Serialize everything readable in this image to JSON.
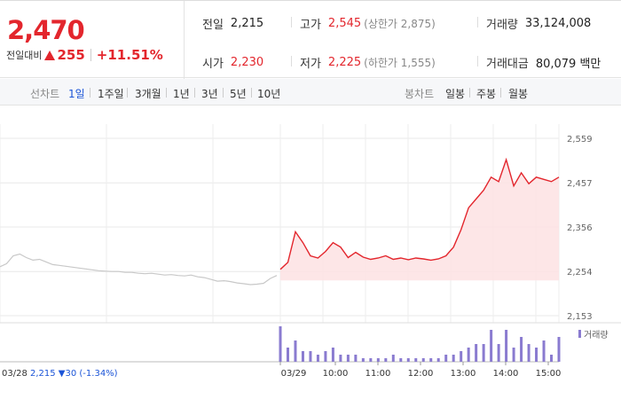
{
  "summary": {
    "price": "2,470",
    "change_label": "전일대비",
    "change_value": "255",
    "change_rate": "+11.51%"
  },
  "stats": {
    "prev_close": {
      "label": "전일",
      "value": "2,215"
    },
    "high": {
      "label": "고가",
      "value": "2,545",
      "sub": "(상한가 2,875)"
    },
    "volume": {
      "label": "거래량",
      "value": "33,124,008"
    },
    "open": {
      "label": "시가",
      "value": "2,230"
    },
    "low": {
      "label": "저가",
      "value": "2,225",
      "sub": "(하한가 1,555)"
    },
    "amount": {
      "label": "거래대금",
      "value": "80,079 백만"
    }
  },
  "toolbar": {
    "line_label": "선차트",
    "periods": [
      "1일",
      "1주일",
      "3개월",
      "1년",
      "3년",
      "5년",
      "10년"
    ],
    "active_period": "1일",
    "candle_label": "봉차트",
    "candles": [
      "일봉",
      "주봉",
      "월봉"
    ]
  },
  "colors": {
    "up": "#e3262d",
    "down": "#1b54d7",
    "volume": "#8a7bd0",
    "prev_line": "#c8c8c8"
  },
  "chart_data": {
    "type": "line",
    "y_ticks": [
      "2,559",
      "2,457",
      "2,356",
      "2,254",
      "2,153"
    ],
    "ylim": [
      2153,
      2559
    ],
    "x_ticks": [
      "03/29",
      "10:00",
      "11:00",
      "12:00",
      "13:00",
      "14:00",
      "15:00"
    ],
    "volume_legend": "거래량",
    "prev_day": {
      "date": "03/28",
      "close": "2,215",
      "change": "30",
      "rate": "(-1.34%)"
    },
    "prev_series": [
      2265,
      2272,
      2290,
      2294,
      2286,
      2280,
      2282,
      2276,
      2270,
      2268,
      2266,
      2264,
      2262,
      2260,
      2258,
      2256,
      2255,
      2254,
      2254,
      2252,
      2252,
      2250,
      2249,
      2250,
      2248,
      2246,
      2247,
      2245,
      2244,
      2246,
      2242,
      2240,
      2236,
      2232,
      2233,
      2231,
      2228,
      2226,
      2224,
      2225,
      2227,
      2238,
      2245
    ],
    "series": [
      {
        "name": "",
        "times": [
          "09:00",
          "09:03",
          "09:06",
          "09:10",
          "09:15",
          "09:20",
          "09:25",
          "09:30",
          "09:40",
          "09:50",
          "10:00",
          "10:15",
          "10:30",
          "10:45",
          "11:00",
          "11:15",
          "11:30",
          "11:45",
          "12:00",
          "12:15",
          "12:30",
          "12:45",
          "13:00",
          "13:10",
          "13:20",
          "13:30",
          "13:40",
          "13:50",
          "14:00",
          "14:10",
          "14:20",
          "14:30",
          "14:40",
          "14:50",
          "15:00",
          "15:10",
          "15:20",
          "15:30"
        ],
        "values": [
          2259,
          2275,
          2345,
          2320,
          2290,
          2285,
          2300,
          2320,
          2310,
          2286,
          2298,
          2287,
          2282,
          2285,
          2290,
          2282,
          2285,
          2281,
          2285,
          2283,
          2280,
          2283,
          2290,
          2310,
          2350,
          2400,
          2420,
          2440,
          2470,
          2460,
          2510,
          2450,
          2480,
          2455,
          2470,
          2465,
          2460,
          2470
        ]
      }
    ],
    "volume": [
      1,
      0.4,
      0.6,
      0.3,
      0.3,
      0.2,
      0.3,
      0.4,
      0.2,
      0.2,
      0.2,
      0.1,
      0.1,
      0.1,
      0.1,
      0.2,
      0.1,
      0.1,
      0.1,
      0.1,
      0.1,
      0.1,
      0.2,
      0.2,
      0.3,
      0.4,
      0.5,
      0.5,
      0.9,
      0.5,
      0.9,
      0.4,
      0.7,
      0.5,
      0.4,
      0.6,
      0.2,
      0.7
    ]
  }
}
